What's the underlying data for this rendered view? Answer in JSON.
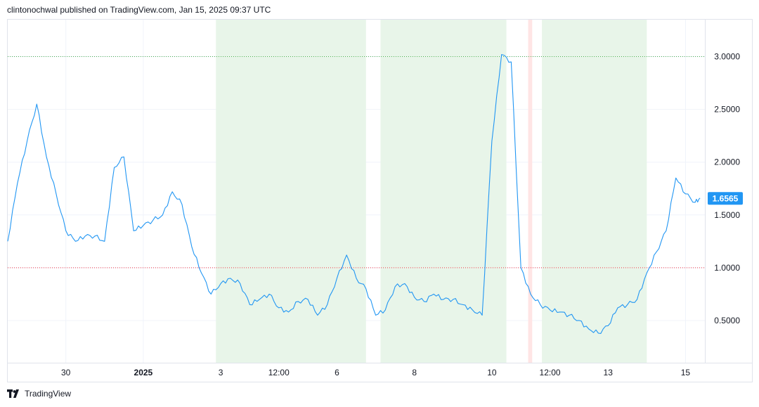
{
  "header": {
    "attribution": "clintonochwal published on TradingView.com, Jan 15, 2025 09:37 UTC"
  },
  "footer": {
    "brand": "TradingView",
    "logo_icon": "tradingview-logo-icon"
  },
  "colors": {
    "line": "#2196f3",
    "shade_green": "#e8f5e9",
    "shade_red": "#ffe5e5",
    "upper_ref": "#4caf50",
    "lower_ref": "#f23645",
    "grid": "#f0f3fa",
    "last_badge": "#2196f3"
  },
  "chart_data": {
    "type": "line",
    "x_tick_labels": [
      {
        "label": "30",
        "bold": false
      },
      {
        "label": "2025",
        "bold": true
      },
      {
        "label": "3",
        "bold": false
      },
      {
        "label": "12:00",
        "bold": false
      },
      {
        "label": "6",
        "bold": false
      },
      {
        "label": "8",
        "bold": false
      },
      {
        "label": "10",
        "bold": false
      },
      {
        "label": "12:00",
        "bold": false
      },
      {
        "label": "13",
        "bold": false
      },
      {
        "label": "15",
        "bold": false
      }
    ],
    "y_tick_labels": [
      "3.0000",
      "2.5000",
      "2.0000",
      "1.5000",
      "1.0000",
      "0.5000"
    ],
    "y_ticks": [
      3.0,
      2.5,
      2.0,
      1.5,
      1.0,
      0.5
    ],
    "ylim": [
      0.1,
      3.35
    ],
    "time_range": [
      "2024-12-28T12:00",
      "2025-01-15T12:00"
    ],
    "reference_lines": [
      {
        "value": 3.0,
        "color": "#4caf50",
        "style": "dotted"
      },
      {
        "value": 1.0,
        "color": "#f23645",
        "style": "dotted"
      }
    ],
    "shaded_regions": [
      {
        "start": "2025-01-02T21:00",
        "end": "2025-01-06T18:00",
        "color": "green"
      },
      {
        "start": "2025-01-07T03:00",
        "end": "2025-01-10T09:00",
        "color": "green"
      },
      {
        "start": "2025-01-10T22:30",
        "end": "2025-01-11T01:00",
        "color": "red"
      },
      {
        "start": "2025-01-11T07:00",
        "end": "2025-01-14T00:00",
        "color": "green"
      }
    ],
    "last_value": 1.6565,
    "last_value_label": "1.6565",
    "series": [
      {
        "x": [
          "2024-12-28T12:00",
          "2024-12-28T18:00",
          "2024-12-29T00:00",
          "2024-12-29T06:00",
          "2024-12-29T12:00",
          "2024-12-29T18:00",
          "2024-12-30T00:00",
          "2024-12-30T06:00",
          "2024-12-30T12:00",
          "2024-12-30T18:00",
          "2024-12-31T00:00",
          "2024-12-31T06:00",
          "2024-12-31T12:00",
          "2024-12-31T18:00",
          "2025-01-01T00:00",
          "2025-01-01T06:00",
          "2025-01-01T12:00",
          "2025-01-01T18:00",
          "2025-01-02T00:00",
          "2025-01-02T06:00",
          "2025-01-02T12:00",
          "2025-01-02T18:00",
          "2025-01-03T00:00",
          "2025-01-03T06:00",
          "2025-01-03T12:00",
          "2025-01-03T18:00",
          "2025-01-04T00:00",
          "2025-01-04T06:00",
          "2025-01-04T12:00",
          "2025-01-04T18:00",
          "2025-01-05T00:00",
          "2025-01-05T06:00",
          "2025-01-05T12:00",
          "2025-01-05T18:00",
          "2025-01-06T00:00",
          "2025-01-06T06:00",
          "2025-01-06T12:00",
          "2025-01-06T18:00",
          "2025-01-07T00:00",
          "2025-01-07T06:00",
          "2025-01-07T12:00",
          "2025-01-07T18:00",
          "2025-01-08T00:00",
          "2025-01-08T06:00",
          "2025-01-08T12:00",
          "2025-01-08T18:00",
          "2025-01-09T00:00",
          "2025-01-09T06:00",
          "2025-01-09T12:00",
          "2025-01-09T18:00",
          "2025-01-10T00:00",
          "2025-01-10T06:00",
          "2025-01-10T12:00",
          "2025-01-10T18:00",
          "2025-01-11T00:00",
          "2025-01-11T06:00",
          "2025-01-11T12:00",
          "2025-01-11T18:00",
          "2025-01-12T00:00",
          "2025-01-12T06:00",
          "2025-01-12T12:00",
          "2025-01-12T18:00",
          "2025-01-13T00:00",
          "2025-01-13T06:00",
          "2025-01-13T12:00",
          "2025-01-13T18:00",
          "2025-01-14T00:00",
          "2025-01-14T06:00",
          "2025-01-14T12:00",
          "2025-01-14T18:00",
          "2025-01-15T00:00",
          "2025-01-15T06:00",
          "2025-01-15T09:00"
        ],
        "y": [
          1.25,
          1.8,
          2.2,
          2.55,
          2.05,
          1.7,
          1.35,
          1.25,
          1.3,
          1.3,
          1.25,
          1.95,
          2.05,
          1.35,
          1.4,
          1.45,
          1.5,
          1.72,
          1.6,
          1.2,
          0.95,
          0.75,
          0.85,
          0.9,
          0.85,
          0.65,
          0.7,
          0.75,
          0.62,
          0.58,
          0.68,
          0.7,
          0.55,
          0.65,
          0.9,
          1.12,
          0.9,
          0.8,
          0.55,
          0.6,
          0.82,
          0.85,
          0.72,
          0.68,
          0.75,
          0.7,
          0.7,
          0.65,
          0.6,
          0.55,
          2.2,
          3.02,
          2.95,
          1.0,
          0.75,
          0.65,
          0.6,
          0.58,
          0.55,
          0.5,
          0.42,
          0.38,
          0.45,
          0.62,
          0.65,
          0.7,
          0.95,
          1.15,
          1.35,
          1.85,
          1.7,
          1.62,
          1.66
        ]
      }
    ]
  }
}
